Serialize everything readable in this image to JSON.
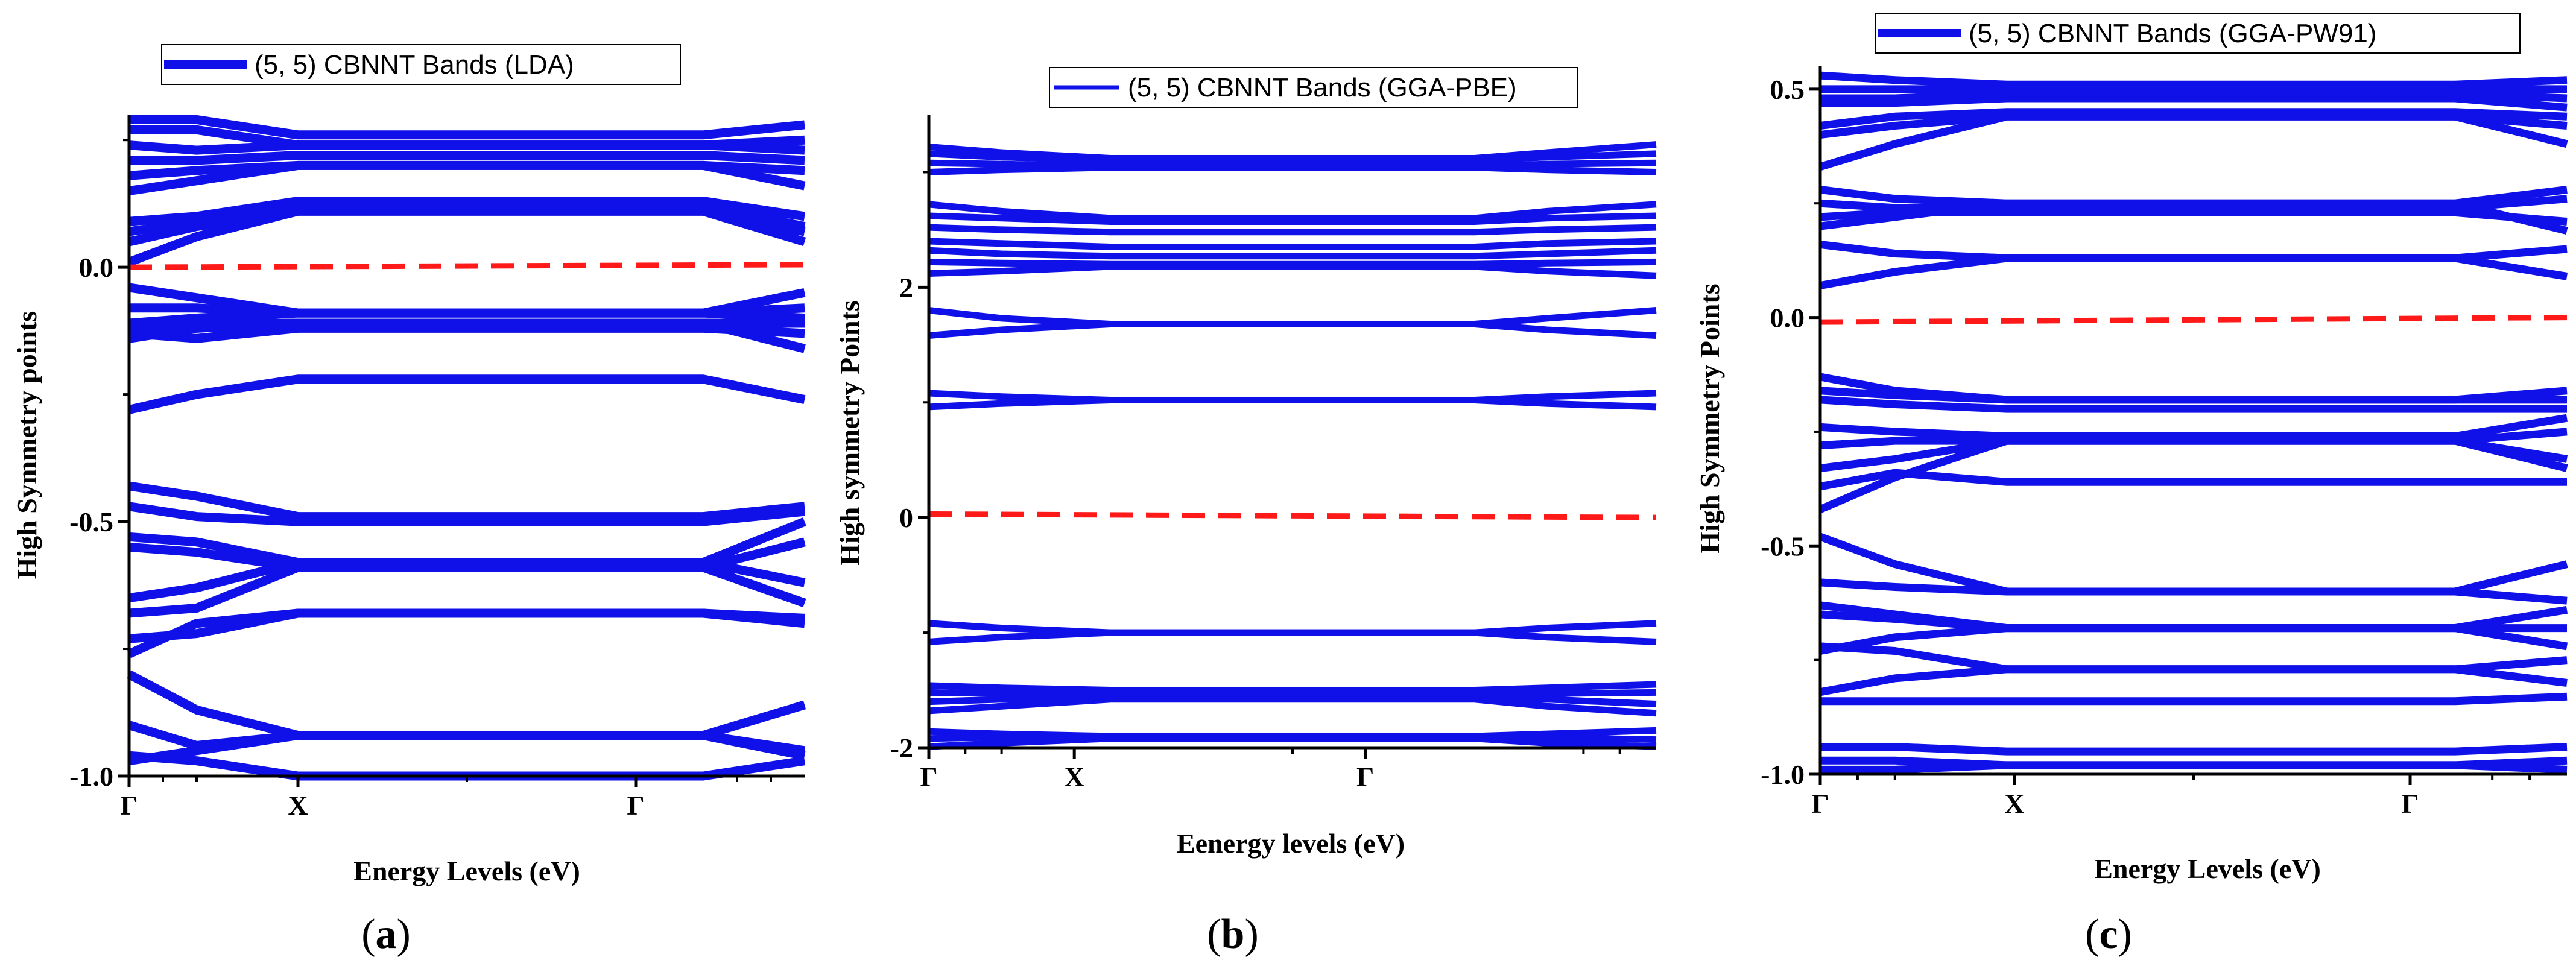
{
  "chart_data": [
    {
      "type": "line",
      "panel_label": "a",
      "legend": "(5, 5) CBNNT Bands (LDA)",
      "xlabel": "Energy Levels (eV)",
      "ylabel": "High Symmetry points",
      "xlim": [
        0,
        1
      ],
      "ylim": [
        -1.0,
        0.3
      ],
      "yticks": [
        {
          "value": 0.0,
          "label": "0.0"
        },
        {
          "value": -0.5,
          "label": "-0.5"
        },
        {
          "value": -1.0,
          "label": "-1.0"
        }
      ],
      "xticks": [
        {
          "value": 0.0,
          "label": "Γ"
        },
        {
          "value": 0.25,
          "label": "X"
        },
        {
          "value": 0.75,
          "label": "Γ"
        }
      ],
      "reference_line": {
        "name": "Fermi level",
        "y_start": 0.0,
        "y_end": 0.005,
        "color": "#ff1a1a"
      },
      "series_color": "#1010e8",
      "bands": [
        [
          0.29,
          0.29,
          0.26,
          0.26,
          0.26,
          0.28
        ],
        [
          0.27,
          0.27,
          0.24,
          0.24,
          0.24,
          0.25
        ],
        [
          0.24,
          0.23,
          0.24,
          0.24,
          0.24,
          0.23
        ],
        [
          0.21,
          0.21,
          0.22,
          0.22,
          0.22,
          0.21
        ],
        [
          0.18,
          0.19,
          0.2,
          0.2,
          0.2,
          0.19
        ],
        [
          0.15,
          0.17,
          0.2,
          0.2,
          0.2,
          0.16
        ],
        [
          0.09,
          0.1,
          0.13,
          0.13,
          0.13,
          0.1
        ],
        [
          0.07,
          0.09,
          0.12,
          0.12,
          0.12,
          0.08
        ],
        [
          0.05,
          0.08,
          0.11,
          0.11,
          0.11,
          0.07
        ],
        [
          0.01,
          0.06,
          0.11,
          0.11,
          0.11,
          0.05
        ],
        [
          -0.04,
          -0.06,
          -0.09,
          -0.09,
          -0.09,
          -0.05
        ],
        [
          -0.08,
          -0.08,
          -0.09,
          -0.09,
          -0.09,
          -0.08
        ],
        [
          -0.11,
          -0.1,
          -0.09,
          -0.09,
          -0.09,
          -0.1
        ],
        [
          -0.12,
          -0.11,
          -0.11,
          -0.11,
          -0.11,
          -0.11
        ],
        [
          -0.13,
          -0.14,
          -0.12,
          -0.12,
          -0.12,
          -0.13
        ],
        [
          -0.14,
          -0.12,
          -0.11,
          -0.11,
          -0.11,
          -0.16
        ],
        [
          -0.28,
          -0.25,
          -0.22,
          -0.22,
          -0.22,
          -0.26
        ],
        [
          -0.43,
          -0.45,
          -0.49,
          -0.49,
          -0.49,
          -0.47
        ],
        [
          -0.47,
          -0.49,
          -0.5,
          -0.5,
          -0.5,
          -0.48
        ],
        [
          -0.53,
          -0.54,
          -0.58,
          -0.58,
          -0.58,
          -0.5
        ],
        [
          -0.55,
          -0.56,
          -0.59,
          -0.59,
          -0.59,
          -0.54
        ],
        [
          -0.65,
          -0.63,
          -0.58,
          -0.58,
          -0.58,
          -0.62
        ],
        [
          -0.68,
          -0.67,
          -0.59,
          -0.59,
          -0.59,
          -0.66
        ],
        [
          -0.73,
          -0.72,
          -0.68,
          -0.68,
          -0.68,
          -0.7
        ],
        [
          -0.76,
          -0.7,
          -0.68,
          -0.68,
          -0.68,
          -0.69
        ],
        [
          -0.8,
          -0.87,
          -0.92,
          -0.92,
          -0.92,
          -0.86
        ],
        [
          -0.9,
          -0.94,
          -0.92,
          -0.92,
          -0.92,
          -0.95
        ],
        [
          -0.97,
          -0.95,
          -0.92,
          -0.92,
          -0.92,
          -0.96
        ],
        [
          -0.96,
          -0.97,
          -1.0,
          -1.0,
          -1.0,
          -0.97
        ]
      ]
    },
    {
      "type": "line",
      "panel_label": "b",
      "legend": "(5, 5) CBNNT Bands (GGA-PBE)",
      "xlabel": "Eenergy levels (eV)",
      "ylabel": "High symmetry Points",
      "xlim": [
        0,
        1
      ],
      "ylim": [
        -2.0,
        3.5
      ],
      "yticks": [
        {
          "value": 2,
          "label": "2"
        },
        {
          "value": 0,
          "label": "0"
        },
        {
          "value": -2,
          "label": "-2"
        }
      ],
      "xticks": [
        {
          "value": 0.0,
          "label": "Γ"
        },
        {
          "value": 0.2,
          "label": "X"
        },
        {
          "value": 0.6,
          "label": "Γ"
        }
      ],
      "reference_line": {
        "name": "Fermi level",
        "y_start": 0.03,
        "y_end": 0.0,
        "color": "#ff1a1a"
      },
      "series_color": "#1010e8",
      "bands": [
        [
          3.22,
          3.17,
          3.12,
          3.12,
          3.17,
          3.24
        ],
        [
          3.16,
          3.13,
          3.1,
          3.1,
          3.13,
          3.16
        ],
        [
          3.08,
          3.07,
          3.05,
          3.05,
          3.07,
          3.08
        ],
        [
          3.0,
          3.02,
          3.04,
          3.04,
          3.02,
          3.0
        ],
        [
          2.72,
          2.66,
          2.6,
          2.6,
          2.66,
          2.72
        ],
        [
          2.62,
          2.6,
          2.57,
          2.57,
          2.6,
          2.62
        ],
        [
          2.52,
          2.5,
          2.48,
          2.48,
          2.5,
          2.52
        ],
        [
          2.4,
          2.38,
          2.35,
          2.35,
          2.38,
          2.4
        ],
        [
          2.32,
          2.29,
          2.27,
          2.27,
          2.29,
          2.32
        ],
        [
          2.22,
          2.21,
          2.2,
          2.2,
          2.21,
          2.22
        ],
        [
          2.12,
          2.14,
          2.18,
          2.18,
          2.14,
          2.1
        ],
        [
          1.8,
          1.73,
          1.68,
          1.68,
          1.73,
          1.8
        ],
        [
          1.58,
          1.63,
          1.68,
          1.68,
          1.63,
          1.58
        ],
        [
          1.08,
          1.05,
          1.02,
          1.02,
          1.05,
          1.08
        ],
        [
          0.96,
          0.99,
          1.02,
          1.02,
          0.99,
          0.96
        ],
        [
          -0.92,
          -0.96,
          -1.0,
          -1.0,
          -0.96,
          -0.92
        ],
        [
          -1.08,
          -1.04,
          -1.0,
          -1.0,
          -1.04,
          -1.08
        ],
        [
          -1.46,
          -1.48,
          -1.5,
          -1.5,
          -1.48,
          -1.45
        ],
        [
          -1.52,
          -1.53,
          -1.54,
          -1.54,
          -1.53,
          -1.52
        ],
        [
          -1.6,
          -1.58,
          -1.56,
          -1.56,
          -1.58,
          -1.62
        ],
        [
          -1.68,
          -1.64,
          -1.58,
          -1.58,
          -1.64,
          -1.7
        ],
        [
          -1.86,
          -1.88,
          -1.9,
          -1.9,
          -1.88,
          -1.85
        ],
        [
          -1.92,
          -1.91,
          -1.9,
          -1.9,
          -1.91,
          -1.93
        ],
        [
          -1.99,
          -1.96,
          -1.92,
          -1.92,
          -1.96,
          -1.99
        ]
      ]
    },
    {
      "type": "line",
      "panel_label": "c",
      "legend": "(5, 5) CBNNT Bands (GGA-PW91)",
      "xlabel": "Energy Levels (eV)",
      "ylabel": "High Symmetry Points",
      "xlim": [
        0,
        1
      ],
      "ylim": [
        -1.0,
        0.55
      ],
      "yticks": [
        {
          "value": 0.5,
          "label": "0.5"
        },
        {
          "value": 0.0,
          "label": "0.0"
        },
        {
          "value": -0.5,
          "label": "-0.5"
        },
        {
          "value": -1.0,
          "label": "-1.0"
        }
      ],
      "xticks": [
        {
          "value": 0.0,
          "label": "Γ"
        },
        {
          "value": 0.26,
          "label": "X"
        },
        {
          "value": 0.79,
          "label": "Γ"
        }
      ],
      "reference_line": {
        "name": "Fermi level",
        "y_start": -0.01,
        "y_end": 0.0,
        "color": "#ff1a1a"
      },
      "series_color": "#1010e8",
      "bands": [
        [
          0.53,
          0.52,
          0.51,
          0.51,
          0.51,
          0.52
        ],
        [
          0.5,
          0.5,
          0.5,
          0.5,
          0.5,
          0.5
        ],
        [
          0.48,
          0.48,
          0.49,
          0.49,
          0.49,
          0.48
        ],
        [
          0.47,
          0.47,
          0.48,
          0.48,
          0.48,
          0.46
        ],
        [
          0.42,
          0.44,
          0.45,
          0.45,
          0.45,
          0.44
        ],
        [
          0.4,
          0.42,
          0.44,
          0.44,
          0.44,
          0.42
        ],
        [
          0.33,
          0.38,
          0.44,
          0.44,
          0.44,
          0.38
        ],
        [
          0.28,
          0.26,
          0.25,
          0.25,
          0.25,
          0.28
        ],
        [
          0.25,
          0.24,
          0.24,
          0.24,
          0.24,
          0.26
        ],
        [
          0.22,
          0.23,
          0.23,
          0.23,
          0.23,
          0.21
        ],
        [
          0.2,
          0.22,
          0.25,
          0.25,
          0.25,
          0.19
        ],
        [
          0.16,
          0.14,
          0.13,
          0.13,
          0.13,
          0.15
        ],
        [
          0.07,
          0.1,
          0.13,
          0.13,
          0.13,
          0.09
        ],
        [
          -0.13,
          -0.16,
          -0.18,
          -0.18,
          -0.18,
          -0.16
        ],
        [
          -0.16,
          -0.17,
          -0.18,
          -0.18,
          -0.18,
          -0.18
        ],
        [
          -0.18,
          -0.19,
          -0.2,
          -0.2,
          -0.2,
          -0.2
        ],
        [
          -0.24,
          -0.25,
          -0.26,
          -0.26,
          -0.26,
          -0.22
        ],
        [
          -0.28,
          -0.27,
          -0.27,
          -0.27,
          -0.27,
          -0.25
        ],
        [
          -0.33,
          -0.31,
          -0.27,
          -0.27,
          -0.27,
          -0.31
        ],
        [
          -0.37,
          -0.34,
          -0.36,
          -0.36,
          -0.36,
          -0.36
        ],
        [
          -0.42,
          -0.35,
          -0.27,
          -0.27,
          -0.27,
          -0.33
        ],
        [
          -0.48,
          -0.54,
          -0.6,
          -0.6,
          -0.6,
          -0.54
        ],
        [
          -0.58,
          -0.59,
          -0.6,
          -0.6,
          -0.6,
          -0.62
        ],
        [
          -0.63,
          -0.65,
          -0.68,
          -0.68,
          -0.68,
          -0.64
        ],
        [
          -0.65,
          -0.66,
          -0.68,
          -0.68,
          -0.68,
          -0.68
        ],
        [
          -0.72,
          -0.73,
          -0.77,
          -0.77,
          -0.77,
          -0.75
        ],
        [
          -0.73,
          -0.7,
          -0.68,
          -0.68,
          -0.68,
          -0.72
        ],
        [
          -0.82,
          -0.79,
          -0.77,
          -0.77,
          -0.77,
          -0.8
        ],
        [
          -0.84,
          -0.84,
          -0.84,
          -0.84,
          -0.84,
          -0.83
        ],
        [
          -0.94,
          -0.94,
          -0.95,
          -0.95,
          -0.95,
          -0.94
        ],
        [
          -0.97,
          -0.97,
          -0.98,
          -0.98,
          -0.98,
          -0.97
        ],
        [
          -0.99,
          -0.99,
          -0.98,
          -0.98,
          -0.98,
          -0.99
        ]
      ]
    }
  ]
}
